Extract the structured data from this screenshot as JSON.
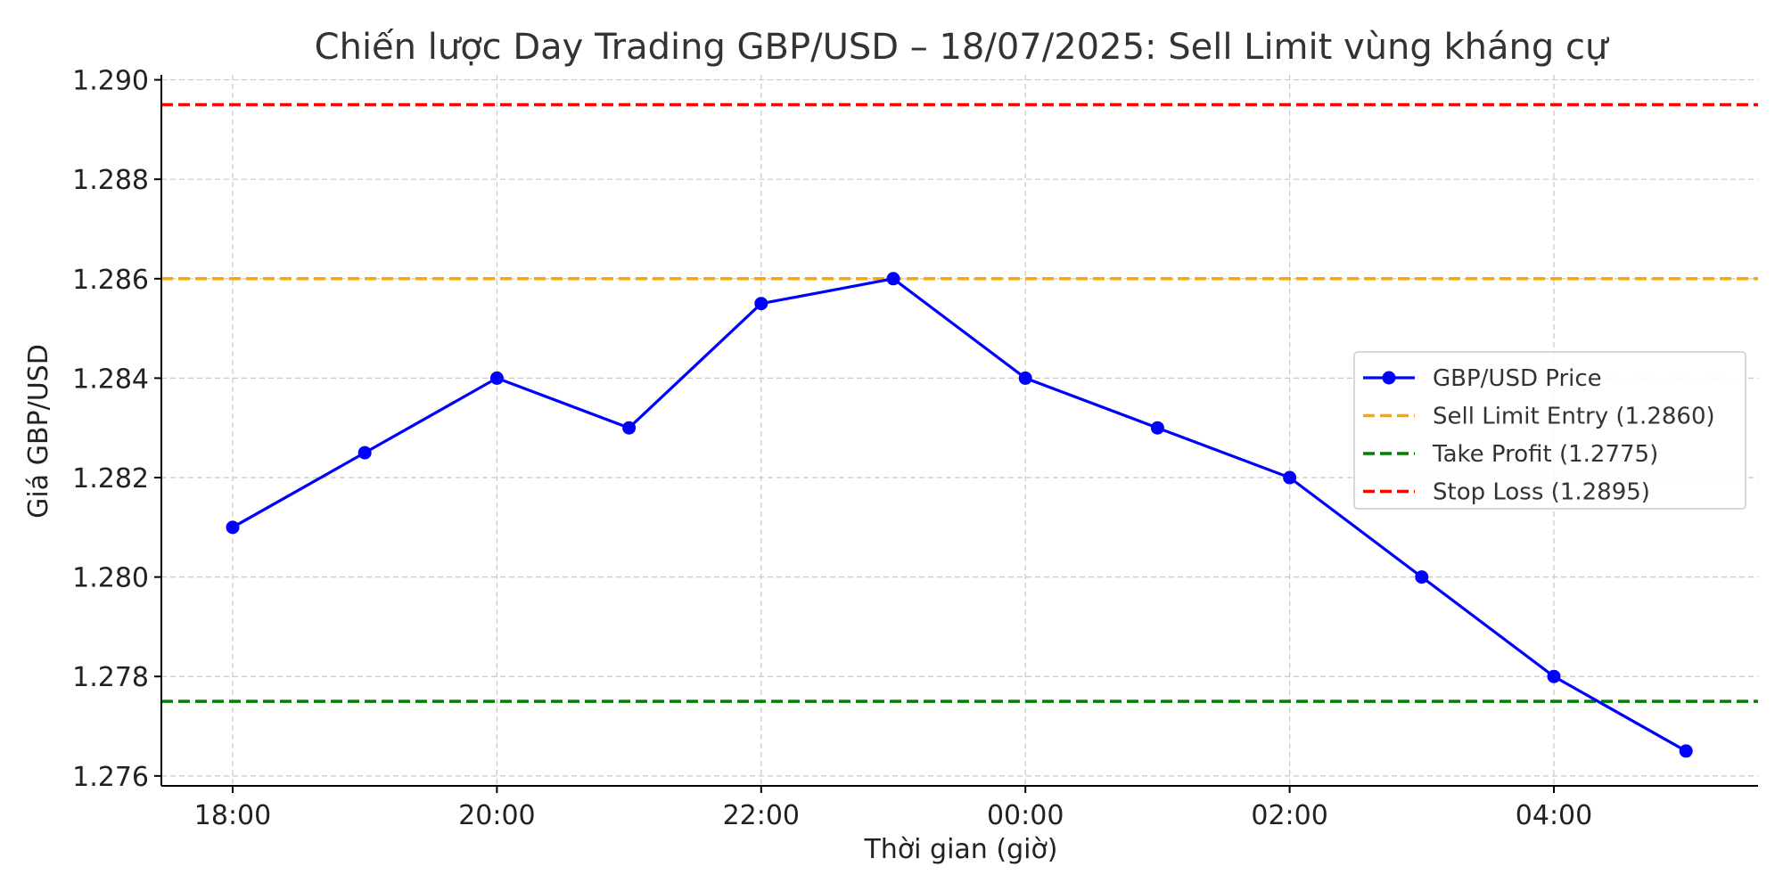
{
  "chart_data": {
    "type": "line",
    "title": "Chiến lược Day Trading GBP/USD – 18/07/2025: Sell Limit vùng kháng cự",
    "xlabel": "Thời gian (giờ)",
    "ylabel": "Giá GBP/USD",
    "x": [
      "18:00",
      "19:00",
      "20:00",
      "21:00",
      "22:00",
      "23:00",
      "00:00",
      "01:00",
      "02:00",
      "03:00",
      "04:00",
      "05:00"
    ],
    "x_ticks": [
      "18:00",
      "20:00",
      "22:00",
      "00:00",
      "02:00",
      "04:00"
    ],
    "y_ticks": [
      "1.276",
      "1.278",
      "1.280",
      "1.282",
      "1.284",
      "1.286",
      "1.288",
      "1.290"
    ],
    "ylim": [
      1.2758,
      1.2901
    ],
    "grid": true,
    "legend_position": "center-right",
    "series": [
      {
        "name": "GBP/USD Price",
        "color": "#0000ff",
        "values": [
          1.281,
          1.2825,
          1.284,
          1.283,
          1.2855,
          1.286,
          1.284,
          1.283,
          1.282,
          1.28,
          1.278,
          1.2765
        ]
      }
    ],
    "hlines": [
      {
        "name": "Sell Limit Entry (1.2860)",
        "value": 1.286,
        "color": "#ffa500"
      },
      {
        "name": "Take Profit (1.2775)",
        "value": 1.2775,
        "color": "#008000"
      },
      {
        "name": "Stop Loss (1.2895)",
        "value": 1.2895,
        "color": "#ff0000"
      }
    ]
  }
}
